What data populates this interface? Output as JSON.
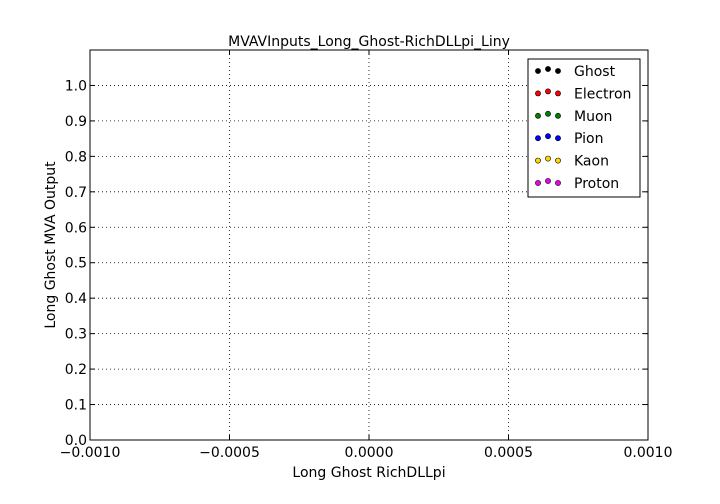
{
  "chart_data": {
    "type": "scatter",
    "title": "MVAVInputs_Long_Ghost-RichDLLpi_Liny",
    "xlabel": "Long Ghost RichDLLpi",
    "ylabel": "Long Ghost MVA Output",
    "xlim": [
      -0.001,
      0.001
    ],
    "ylim": [
      0.0,
      1.1
    ],
    "x_ticks": [
      {
        "value": -0.001,
        "label": "−0.0010"
      },
      {
        "value": -0.0005,
        "label": "−0.0005"
      },
      {
        "value": 0.0,
        "label": "0.0000"
      },
      {
        "value": 0.0005,
        "label": "0.0005"
      },
      {
        "value": 0.001,
        "label": "0.0010"
      }
    ],
    "y_ticks": [
      {
        "value": 0.0,
        "label": "0.0"
      },
      {
        "value": 0.1,
        "label": "0.1"
      },
      {
        "value": 0.2,
        "label": "0.2"
      },
      {
        "value": 0.3,
        "label": "0.3"
      },
      {
        "value": 0.4,
        "label": "0.4"
      },
      {
        "value": 0.5,
        "label": "0.5"
      },
      {
        "value": 0.6,
        "label": "0.6"
      },
      {
        "value": 0.7,
        "label": "0.7"
      },
      {
        "value": 0.8,
        "label": "0.8"
      },
      {
        "value": 0.9,
        "label": "0.9"
      },
      {
        "value": 1.0,
        "label": "1.0"
      }
    ],
    "grid": true,
    "legend_position": "top-right",
    "series": [
      {
        "name": "Ghost",
        "color": "#000000",
        "x": [],
        "y": []
      },
      {
        "name": "Electron",
        "color": "#ff0000",
        "x": [],
        "y": []
      },
      {
        "name": "Muon",
        "color": "#008000",
        "x": [],
        "y": []
      },
      {
        "name": "Pion",
        "color": "#0000ff",
        "x": [],
        "y": []
      },
      {
        "name": "Kaon",
        "color": "#ffd700",
        "x": [],
        "y": []
      },
      {
        "name": "Proton",
        "color": "#ee00ee",
        "x": [],
        "y": []
      }
    ]
  }
}
